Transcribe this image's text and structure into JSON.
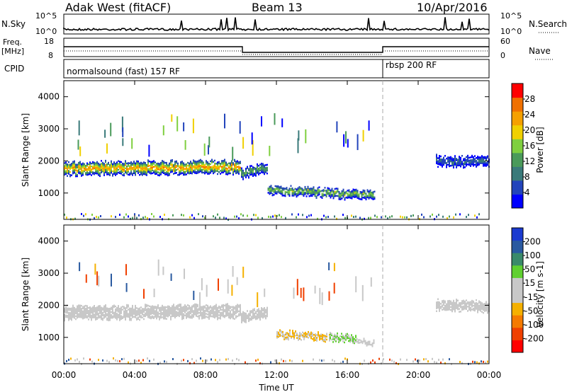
{
  "header": {
    "station": "Adak West (fitACF)",
    "beam": "Beam 13",
    "date": "10/Apr/2016"
  },
  "time_axis": {
    "label": "Time UT",
    "ticks": [
      "00:00",
      "04:00",
      "08:00",
      "12:00",
      "16:00",
      "20:00",
      "00:00"
    ]
  },
  "strips": {
    "nsky_label": "N.Sky",
    "nsearch_label": "N.Search",
    "nsky_ticks": [
      "10^5",
      "10^0"
    ],
    "freq_label": "Freq.",
    "freq_unit": "[MHz]",
    "freq_ticks": [
      "18",
      "8"
    ],
    "nave_label": "Nave",
    "nave_ticks": [
      "60",
      "0"
    ],
    "cpid_label": "CPID",
    "cpid_segments": [
      "normalsound (fast) 157 RF",
      "rbsp 200 RF"
    ]
  },
  "colors": {
    "power_scale": [
      "#0000ff",
      "#2244bb",
      "#3a7a7a",
      "#4a9a5a",
      "#7fcf3f",
      "#f0d000",
      "#f5a000",
      "#f07000",
      "#ff0000"
    ],
    "velocity_scale": [
      "#ff0000",
      "#f04000",
      "#f57a00",
      "#f5b000",
      "#c8c8c8",
      "#c8c8c8",
      "#60d030",
      "#3a8a6a",
      "#2a5aa0",
      "#1a3ad0"
    ],
    "ground_scatter": "#c8c8c8"
  },
  "chart_data": [
    {
      "type": "heatmap",
      "name": "power",
      "ylabel": "Slant Range [km]",
      "xlabel": "",
      "xlim": [
        0,
        24
      ],
      "ylim": [
        180,
        4500
      ],
      "yticks": [
        "1000",
        "2000",
        "3000",
        "4000"
      ],
      "colorbar_label": "Power [dB]",
      "colorbar_ticks": [
        "4",
        "8",
        "12",
        "16",
        "20",
        "24",
        "28"
      ],
      "clim": [
        0,
        30
      ],
      "mode_change_time": 18.0,
      "bands": [
        {
          "t0": 0.0,
          "t1": 10.0,
          "center_start": 1750,
          "center_end": 1800,
          "width": 380,
          "peak_power": 24
        },
        {
          "t0": 10.0,
          "t1": 11.5,
          "center_start": 1600,
          "center_end": 1800,
          "width": 300,
          "peak_power": 14
        },
        {
          "t0": 11.5,
          "t1": 17.5,
          "center_start": 1100,
          "center_end": 900,
          "width": 250,
          "peak_power": 16
        },
        {
          "t0": 21.0,
          "t1": 24.0,
          "center_start": 2000,
          "center_end": 1950,
          "width": 300,
          "peak_power": 8
        }
      ]
    },
    {
      "type": "heatmap",
      "name": "velocity",
      "ylabel": "Slant Range [km]",
      "xlabel": "Time UT",
      "xlim": [
        0,
        24
      ],
      "ylim": [
        180,
        4500
      ],
      "yticks": [
        "1000",
        "2000",
        "3000",
        "4000"
      ],
      "colorbar_label": "Velocity [m s-1]",
      "colorbar_ticks": [
        "200",
        "100",
        "50",
        "15",
        "-15",
        "-50",
        "-100",
        "-200"
      ],
      "clim": [
        -250,
        250
      ],
      "mode_change_time": 18.0,
      "bands": [
        {
          "t0": 0.0,
          "t1": 10.0,
          "center_start": 1750,
          "center_end": 1800,
          "width": 380,
          "velocity": 0,
          "ground_scatter": true
        },
        {
          "t0": 10.0,
          "t1": 11.5,
          "center_start": 1600,
          "center_end": 1800,
          "width": 300,
          "velocity": 0,
          "ground_scatter": true
        },
        {
          "t0": 12.0,
          "t1": 15.0,
          "center_start": 1100,
          "center_end": 1000,
          "width": 220,
          "velocity": -50
        },
        {
          "t0": 15.0,
          "t1": 16.5,
          "center_start": 1000,
          "center_end": 950,
          "width": 200,
          "velocity": 50
        },
        {
          "t0": 16.5,
          "t1": 17.5,
          "center_start": 900,
          "center_end": 800,
          "width": 120,
          "velocity": 0,
          "ground_scatter": true
        },
        {
          "t0": 21.0,
          "t1": 24.0,
          "center_start": 2000,
          "center_end": 1950,
          "width": 300,
          "velocity": 0,
          "ground_scatter": true
        }
      ]
    }
  ]
}
